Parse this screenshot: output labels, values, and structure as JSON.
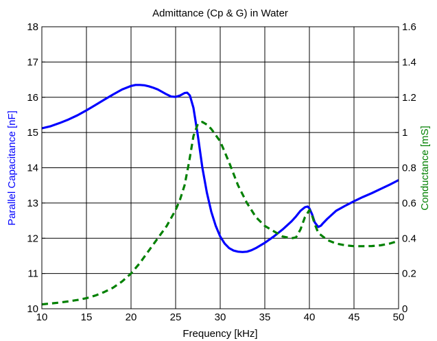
{
  "chart_data": {
    "type": "line",
    "title": "Admittance (Cp & G) in Water",
    "xlabel": "Frequency [kHz]",
    "ylabel": "Parallel Capacitance [nF]",
    "ylabel_right": "Conductance [mS]",
    "xlim": [
      10,
      50
    ],
    "ylim": [
      10,
      18
    ],
    "ylim_right": [
      0,
      1.6
    ],
    "x_ticks": [
      10,
      15,
      20,
      25,
      30,
      35,
      40,
      45,
      50
    ],
    "y_ticks": [
      10,
      11,
      12,
      13,
      14,
      15,
      16,
      17,
      18
    ],
    "y_ticks_right": [
      0,
      0.2,
      0.4,
      0.6,
      0.8,
      1,
      1.2,
      1.4,
      1.6
    ],
    "grid": true,
    "series": [
      {
        "axis": "left",
        "color": "#0000ff",
        "style": "solid",
        "x": [
          10,
          11,
          12,
          13,
          14,
          15,
          16,
          17,
          18,
          19,
          20,
          20.5,
          21,
          21.5,
          22,
          22.5,
          23,
          23.5,
          24,
          24.5,
          25,
          25.5,
          26,
          26.3,
          26.6,
          27,
          27.5,
          28,
          28.5,
          29,
          29.5,
          30,
          30.5,
          31,
          31.5,
          32,
          32.5,
          33,
          33.5,
          34,
          35,
          36,
          37,
          38,
          38.5,
          39,
          39.5,
          39.8,
          40,
          40.3,
          40.6,
          41,
          41.3,
          41.5,
          42,
          43,
          44,
          45,
          46,
          47,
          48,
          49,
          50
        ],
        "values": [
          15.12,
          15.18,
          15.27,
          15.37,
          15.49,
          15.63,
          15.78,
          15.93,
          16.08,
          16.22,
          16.32,
          16.35,
          16.35,
          16.34,
          16.31,
          16.27,
          16.22,
          16.15,
          16.08,
          16.02,
          16.01,
          16.05,
          16.12,
          16.13,
          16.05,
          15.7,
          14.9,
          14.0,
          13.3,
          12.75,
          12.35,
          12.05,
          11.85,
          11.72,
          11.65,
          11.62,
          11.61,
          11.62,
          11.66,
          11.72,
          11.87,
          12.05,
          12.25,
          12.48,
          12.62,
          12.78,
          12.88,
          12.9,
          12.85,
          12.68,
          12.45,
          12.32,
          12.36,
          12.42,
          12.55,
          12.78,
          12.92,
          13.05,
          13.17,
          13.28,
          13.4,
          13.52,
          13.65
        ]
      },
      {
        "axis": "right",
        "color": "#008000",
        "style": "dashed",
        "x": [
          10,
          11,
          12,
          13,
          14,
          15,
          16,
          17,
          18,
          19,
          20,
          21,
          22,
          23,
          24,
          25,
          25.5,
          26,
          26.5,
          27,
          27.5,
          28,
          28.5,
          29,
          30,
          31,
          32,
          33,
          34,
          35,
          36,
          37,
          38,
          38.5,
          39,
          39.5,
          40,
          40.3,
          40.6,
          41,
          42,
          43,
          44,
          45,
          46,
          47,
          48,
          49,
          50
        ],
        "values": [
          0.025,
          0.03,
          0.035,
          0.042,
          0.05,
          0.06,
          0.075,
          0.095,
          0.12,
          0.155,
          0.2,
          0.26,
          0.33,
          0.4,
          0.47,
          0.56,
          0.62,
          0.7,
          0.83,
          0.98,
          1.05,
          1.06,
          1.045,
          1.02,
          0.95,
          0.83,
          0.7,
          0.6,
          0.52,
          0.47,
          0.44,
          0.41,
          0.4,
          0.405,
          0.45,
          0.52,
          0.56,
          0.53,
          0.48,
          0.43,
          0.39,
          0.37,
          0.36,
          0.355,
          0.355,
          0.356,
          0.36,
          0.37,
          0.385
        ]
      }
    ]
  }
}
